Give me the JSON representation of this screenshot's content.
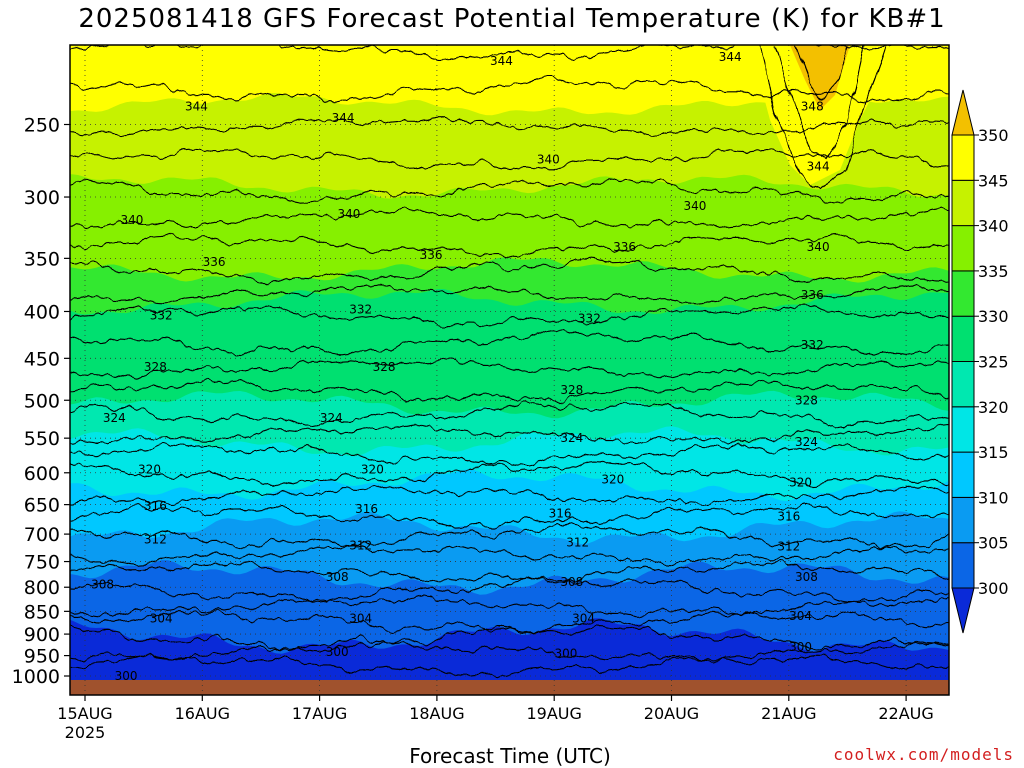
{
  "chart_data": {
    "type": "heatmap",
    "title": "2025081418 GFS Forecast Potential Temperature (K) for KB#1",
    "xlabel": "Forecast Time (UTC)",
    "ylabel": "",
    "x_ticks": [
      "15AUG",
      "16AUG",
      "17AUG",
      "18AUG",
      "19AUG",
      "20AUG",
      "21AUG",
      "22AUG"
    ],
    "x_sub_label": "2025",
    "y_ticks": [
      250,
      300,
      350,
      400,
      450,
      500,
      550,
      600,
      650,
      700,
      750,
      800,
      850,
      900,
      950,
      1000
    ],
    "y_axis": "pressure (hPa), reversed",
    "colorbar": {
      "levels": [
        300,
        305,
        310,
        315,
        320,
        325,
        330,
        335,
        340,
        345,
        350
      ],
      "colors": [
        "#0a2ad8",
        "#0b66e6",
        "#0a9bf2",
        "#00c8ff",
        "#00e6e6",
        "#00e8b0",
        "#00e070",
        "#33e830",
        "#86f000",
        "#c6f200",
        "#ffff00",
        "#f3c000"
      ],
      "extends": "both"
    },
    "contour_interval": 4,
    "contours": [
      {
        "value": 300,
        "p": 960
      },
      {
        "value": 304,
        "p": 860
      },
      {
        "value": 308,
        "p": 795
      },
      {
        "value": 312,
        "p": 718
      },
      {
        "value": 316,
        "p": 660
      },
      {
        "value": 320,
        "p": 610
      },
      {
        "value": 324,
        "p": 540
      },
      {
        "value": 328,
        "p": 480
      },
      {
        "value": 332,
        "p": 420
      },
      {
        "value": 336,
        "p": 372
      },
      {
        "value": 340,
        "p": 328
      },
      {
        "value": 344,
        "p": 258
      },
      {
        "value": 348,
        "p": 232
      }
    ],
    "contour_labels": [
      {
        "text": "300",
        "t": 0.35,
        "p": 1000
      },
      {
        "text": "300",
        "t": 2.15,
        "p": 942
      },
      {
        "text": "300",
        "t": 4.1,
        "p": 945
      },
      {
        "text": "300",
        "t": 6.1,
        "p": 930
      },
      {
        "text": "304",
        "t": 0.65,
        "p": 865
      },
      {
        "text": "304",
        "t": 2.35,
        "p": 865
      },
      {
        "text": "304",
        "t": 4.25,
        "p": 865
      },
      {
        "text": "304",
        "t": 6.1,
        "p": 860
      },
      {
        "text": "308",
        "t": 0.15,
        "p": 795
      },
      {
        "text": "308",
        "t": 2.15,
        "p": 780
      },
      {
        "text": "308",
        "t": 4.15,
        "p": 790
      },
      {
        "text": "308",
        "t": 6.15,
        "p": 780
      },
      {
        "text": "312",
        "t": 0.6,
        "p": 710
      },
      {
        "text": "312",
        "t": 2.35,
        "p": 720
      },
      {
        "text": "312",
        "t": 4.2,
        "p": 715
      },
      {
        "text": "312",
        "t": 6.0,
        "p": 722
      },
      {
        "text": "316",
        "t": 0.6,
        "p": 652
      },
      {
        "text": "316",
        "t": 2.4,
        "p": 657
      },
      {
        "text": "316",
        "t": 4.05,
        "p": 665
      },
      {
        "text": "316",
        "t": 6.0,
        "p": 670
      },
      {
        "text": "320",
        "t": 0.55,
        "p": 595
      },
      {
        "text": "320",
        "t": 2.45,
        "p": 595
      },
      {
        "text": "320",
        "t": 4.5,
        "p": 610
      },
      {
        "text": "320",
        "t": 6.1,
        "p": 615
      },
      {
        "text": "324",
        "t": 0.25,
        "p": 523
      },
      {
        "text": "324",
        "t": 2.1,
        "p": 523
      },
      {
        "text": "324",
        "t": 4.15,
        "p": 550
      },
      {
        "text": "324",
        "t": 6.15,
        "p": 555
      },
      {
        "text": "328",
        "t": 0.6,
        "p": 460
      },
      {
        "text": "328",
        "t": 2.55,
        "p": 460
      },
      {
        "text": "328",
        "t": 4.15,
        "p": 487
      },
      {
        "text": "328",
        "t": 6.15,
        "p": 500
      },
      {
        "text": "332",
        "t": 0.65,
        "p": 404
      },
      {
        "text": "332",
        "t": 2.35,
        "p": 398
      },
      {
        "text": "332",
        "t": 4.3,
        "p": 407
      },
      {
        "text": "332",
        "t": 6.2,
        "p": 435
      },
      {
        "text": "336",
        "t": 1.1,
        "p": 353
      },
      {
        "text": "336",
        "t": 2.95,
        "p": 347
      },
      {
        "text": "336",
        "t": 4.6,
        "p": 340
      },
      {
        "text": "336",
        "t": 6.2,
        "p": 384
      },
      {
        "text": "340",
        "t": 0.4,
        "p": 318
      },
      {
        "text": "340",
        "t": 2.25,
        "p": 313
      },
      {
        "text": "340",
        "t": 3.95,
        "p": 273
      },
      {
        "text": "340",
        "t": 5.2,
        "p": 307
      },
      {
        "text": "340",
        "t": 6.25,
        "p": 340
      },
      {
        "text": "344",
        "t": 0.95,
        "p": 239
      },
      {
        "text": "344",
        "t": 2.2,
        "p": 246
      },
      {
        "text": "344",
        "t": 3.55,
        "p": 213
      },
      {
        "text": "344",
        "t": 5.5,
        "p": 211
      },
      {
        "text": "344",
        "t": 6.25,
        "p": 278
      },
      {
        "text": "348",
        "t": 6.2,
        "p": 239
      }
    ]
  },
  "credit": "coolwx.com/models"
}
